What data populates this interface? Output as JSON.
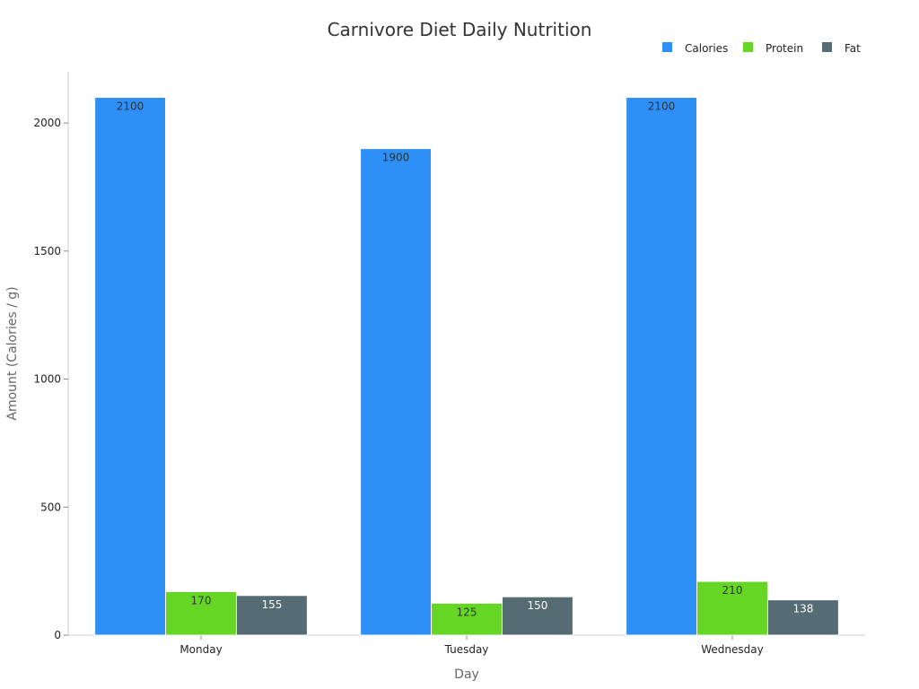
{
  "chart_data": {
    "type": "bar",
    "title": "Carnivore Diet Daily Nutrition",
    "xlabel": "Day",
    "ylabel": "Amount (Calories / g)",
    "categories": [
      "Monday",
      "Tuesday",
      "Wednesday"
    ],
    "series": [
      {
        "name": "Calories",
        "color": "#2E8FF7",
        "label_color": "#333333",
        "values": [
          2100,
          1900,
          2100
        ]
      },
      {
        "name": "Protein",
        "color": "#66D624",
        "label_color": "#333333",
        "values": [
          170,
          125,
          210
        ]
      },
      {
        "name": "Fat",
        "color": "#566C74",
        "label_color": "#ffffff",
        "values": [
          155,
          150,
          138
        ]
      }
    ],
    "ylim": [
      0,
      2200
    ],
    "yticks": [
      0,
      500,
      1000,
      1500,
      2000
    ],
    "ytick_labels": [
      "0",
      "500",
      "1000",
      "1500",
      "2000"
    ],
    "legend_position": "top-right",
    "grid": false
  }
}
